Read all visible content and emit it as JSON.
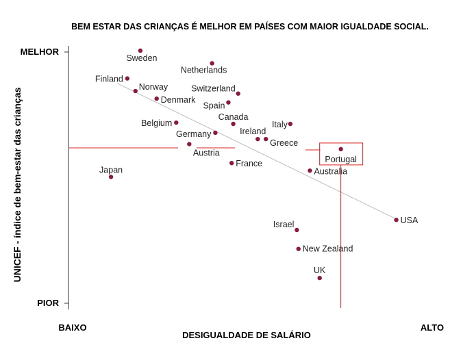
{
  "chart_data": {
    "type": "scatter",
    "title": "BEM ESTAR DAS CRIANÇAS É MELHOR EM PAÍSES COM MAIOR IGUALDADE SOCIAL.",
    "xlabel": "DESIGUALDADE DE SALÁRIO",
    "ylabel": "UNICEF - índice de bem-estar das crianças",
    "x_ticks": {
      "low": "BAIXO",
      "high": "ALTO"
    },
    "y_ticks": {
      "low": "PIOR",
      "high": "MELHOR"
    },
    "xlim": [
      0,
      100
    ],
    "ylim": [
      0,
      100
    ],
    "trendline": {
      "x": [
        10,
        96
      ],
      "y": [
        87,
        33
      ]
    },
    "highlight": {
      "label": "Portugal"
    },
    "points": [
      {
        "label": "Sweden",
        "x": 17,
        "y": 100
      },
      {
        "label": "Netherlands",
        "x": 39,
        "y": 95
      },
      {
        "label": "Finland",
        "x": 13,
        "y": 89
      },
      {
        "label": "Norway",
        "x": 15.5,
        "y": 84
      },
      {
        "label": "Switzerland",
        "x": 47,
        "y": 83
      },
      {
        "label": "Denmark",
        "x": 22,
        "y": 81
      },
      {
        "label": "Spain",
        "x": 44,
        "y": 79.5
      },
      {
        "label": "Canada",
        "x": 45.5,
        "y": 71
      },
      {
        "label": "Italy",
        "x": 63,
        "y": 71
      },
      {
        "label": "Belgium",
        "x": 28,
        "y": 71.5
      },
      {
        "label": "Germany",
        "x": 40,
        "y": 67.5
      },
      {
        "label": "Ireland",
        "x": 53,
        "y": 65
      },
      {
        "label": "Greece",
        "x": 55.5,
        "y": 65
      },
      {
        "label": "Austria",
        "x": 32,
        "y": 63
      },
      {
        "label": "Portugal",
        "x": 78.5,
        "y": 61
      },
      {
        "label": "France",
        "x": 45,
        "y": 55.5
      },
      {
        "label": "Australia",
        "x": 69,
        "y": 52.5
      },
      {
        "label": "Japan",
        "x": 8,
        "y": 50
      },
      {
        "label": "USA",
        "x": 95.5,
        "y": 33
      },
      {
        "label": "Israel",
        "x": 65,
        "y": 29
      },
      {
        "label": "New Zealand",
        "x": 65.5,
        "y": 21.5
      },
      {
        "label": "UK",
        "x": 72,
        "y": 10
      }
    ],
    "grid": false,
    "legend": "none"
  },
  "colors": {
    "point": "#8b1a3c",
    "highlight_lines": "#d9231f",
    "trendline": "#bdbdbd",
    "axis": "#333333"
  }
}
